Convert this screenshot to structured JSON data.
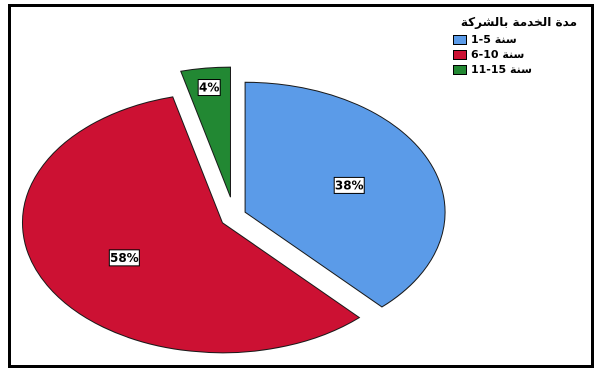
{
  "chart_data": {
    "type": "pie",
    "title": "",
    "legend_title": "مدة الخدمة بالشركة",
    "legend_position": "top-right",
    "categories": [
      "1-5 سنة",
      "6-10 سنة",
      "11-15 سنة"
    ],
    "values": [
      38,
      58,
      4
    ],
    "labels": [
      "38%",
      "58%",
      "4%"
    ],
    "colors": [
      "#5b9be8",
      "#cc1133",
      "#228833"
    ],
    "exploded": true
  }
}
